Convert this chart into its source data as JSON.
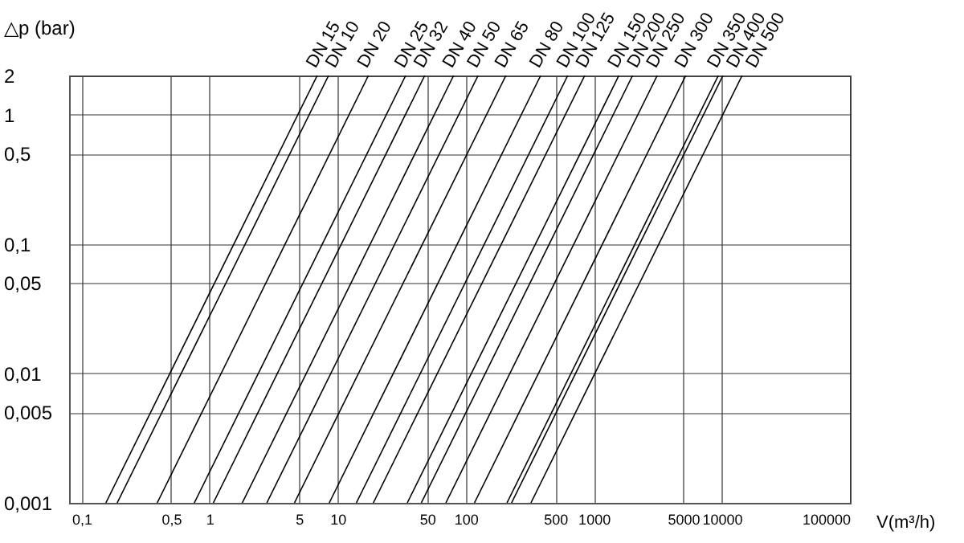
{
  "chart_data": {
    "type": "line",
    "xlabel": "V(m³/h)",
    "ylabel": "△p (bar)",
    "log": "xy",
    "grid": true,
    "legend": false,
    "line_style": "solid",
    "marker": "none",
    "xlim": [
      0.08,
      100000
    ],
    "ylim": [
      0.001,
      2
    ],
    "xticks": [
      {
        "value": 0.1,
        "label": "0,1"
      },
      {
        "value": 0.5,
        "label": "0,5"
      },
      1,
      5,
      10,
      50,
      100,
      500,
      1000,
      5000,
      10000,
      100000
    ],
    "yticks": [
      {
        "value": 0.001,
        "label": "0,001"
      },
      {
        "value": 0.005,
        "label": "0,005"
      },
      {
        "value": 0.01,
        "label": "0,01"
      },
      {
        "value": 0.05,
        "label": "0,05"
      },
      {
        "value": 0.1,
        "label": "0,1"
      },
      {
        "value": 0.5,
        "label": "0,5"
      },
      1,
      2
    ],
    "series": [
      {
        "name": "DN 15",
        "color": "#000000",
        "x": [
          0.155,
          6.93
        ],
        "values": [
          0.001,
          2
        ]
      },
      {
        "name": "DN 10",
        "color": "#000000",
        "x": [
          0.19,
          8.5
        ],
        "values": [
          0.001,
          2
        ]
      },
      {
        "name": "DN 20",
        "color": "#000000",
        "x": [
          0.39,
          17.4
        ],
        "values": [
          0.001,
          2
        ]
      },
      {
        "name": "DN 25",
        "color": "#000000",
        "x": [
          0.76,
          34
        ],
        "values": [
          0.001,
          2
        ]
      },
      {
        "name": "DN 32",
        "color": "#000000",
        "x": [
          1.07,
          47.9
        ],
        "values": [
          0.001,
          2
        ]
      },
      {
        "name": "DN 40",
        "color": "#000000",
        "x": [
          1.8,
          80.5
        ],
        "values": [
          0.001,
          2
        ]
      },
      {
        "name": "DN 50",
        "color": "#000000",
        "x": [
          2.8,
          125
        ],
        "values": [
          0.001,
          2
        ]
      },
      {
        "name": "DN 65",
        "color": "#000000",
        "x": [
          4.6,
          206
        ],
        "values": [
          0.001,
          2
        ]
      },
      {
        "name": "DN 80",
        "color": "#000000",
        "x": [
          8.6,
          385
        ],
        "values": [
          0.001,
          2
        ]
      },
      {
        "name": "DN 100",
        "color": "#000000",
        "x": [
          14,
          626
        ],
        "values": [
          0.001,
          2
        ]
      },
      {
        "name": "DN 125",
        "color": "#000000",
        "x": [
          19,
          850
        ],
        "values": [
          0.001,
          2
        ]
      },
      {
        "name": "DN 150",
        "color": "#000000",
        "x": [
          35,
          1570
        ],
        "values": [
          0.001,
          2
        ]
      },
      {
        "name": "DN 200",
        "color": "#000000",
        "x": [
          45,
          2010
        ],
        "values": [
          0.001,
          2
        ]
      },
      {
        "name": "DN 250",
        "color": "#000000",
        "x": [
          70,
          3130
        ],
        "values": [
          0.001,
          2
        ]
      },
      {
        "name": "DN 300",
        "color": "#000000",
        "x": [
          117,
          5230
        ],
        "values": [
          0.001,
          2
        ]
      },
      {
        "name": "DN 350",
        "color": "#000000",
        "x": [
          210,
          9390
        ],
        "values": [
          0.001,
          2
        ]
      },
      {
        "name": "DN 400",
        "color": "#000000",
        "x": [
          228,
          10200
        ],
        "values": [
          0.001,
          2
        ]
      },
      {
        "name": "DN 500",
        "color": "#000000",
        "x": [
          323,
          14400
        ],
        "values": [
          0.001,
          2
        ]
      }
    ]
  }
}
